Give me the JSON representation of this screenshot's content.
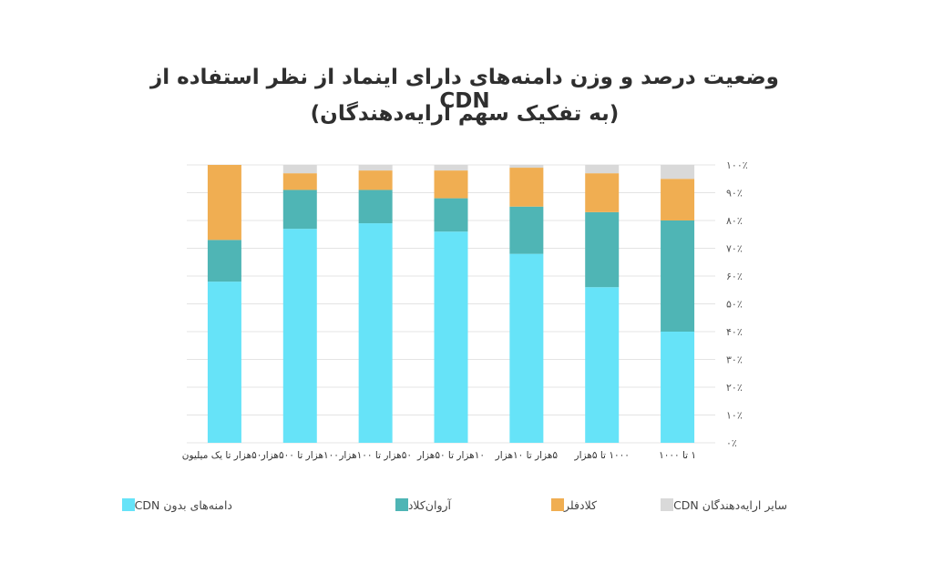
{
  "chart_data": {
    "type": "bar",
    "stacked": true,
    "title": [
      "وضعیت درصد و وزن دامنه‌های دارای اینماد از نظر استفاده از CDN",
      "(به تفکیک سهم ارایه‌دهندگان)"
    ],
    "categories": [
      "۱ تا ۱۰۰۰",
      "۱۰۰۰ تا ۵هزار",
      "۵هزار تا ۱۰هزار",
      "۱۰هزار تا ۵۰هزار",
      "۵۰هزار تا ۱۰۰هزار",
      "۱۰۰هزار تا ۵۰۰هزار",
      "۵۰۰هزار تا یک میلیون"
    ],
    "series": [
      {
        "name": "دامنه‌های بدون CDN",
        "color": "#66e3f8",
        "values": [
          40,
          56,
          68,
          76,
          79,
          77,
          58
        ]
      },
      {
        "name": "آروان‌کلاد",
        "color": "#4fb5b5",
        "values": [
          40,
          27,
          17,
          12,
          12,
          14,
          15
        ]
      },
      {
        "name": "کلادفلر",
        "color": "#f0ae52",
        "values": [
          15,
          14,
          14,
          10,
          7,
          6,
          27
        ]
      },
      {
        "name": "سایر ارایه‌دهندگان CDN",
        "color": "#d9d9d9",
        "values": [
          5,
          3,
          1,
          2,
          2,
          3,
          0
        ]
      }
    ],
    "yticks": [
      "۰٪",
      "۱۰٪",
      "۲۰٪",
      "۳۰٪",
      "۴۰٪",
      "۵۰٪",
      "۶۰٪",
      "۷۰٪",
      "۸۰٪",
      "۹۰٪",
      "۱۰۰٪"
    ],
    "ylim": [
      0,
      100
    ],
    "yaxis_side": "right",
    "grid": true,
    "legend_position": "bottom"
  }
}
